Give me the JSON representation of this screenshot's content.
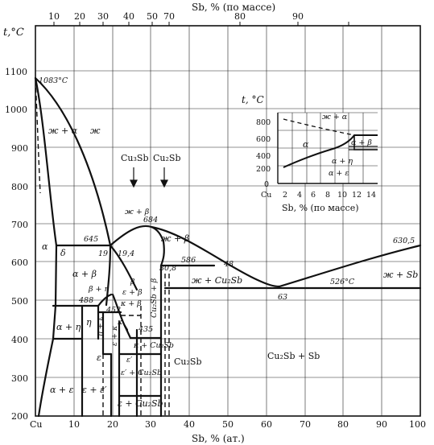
{
  "axes": {
    "y_title": "t,°C",
    "y_ticks": [
      "1100",
      "1000",
      "900",
      "800",
      "700",
      "600",
      "500",
      "400",
      "300",
      "200"
    ],
    "x_bottom_title": "Sb, % (ат.)",
    "x_bottom_origin": "Cu",
    "x_bottom_ticks": [
      "10",
      "20",
      "30",
      "40",
      "50",
      "60",
      "70",
      "80",
      "90",
      "100"
    ],
    "x_top_title": "Sb, % (по массе)",
    "x_top_ticks": [
      "10",
      "20",
      "30",
      "40",
      "50",
      "70",
      "80",
      "90"
    ]
  },
  "points": {
    "cu_melt": "1083°C",
    "sb_melt": "630,5",
    "t645": "645",
    "t684": "684",
    "t586": "586",
    "t526": "526°C",
    "t488": "488",
    "t452": "452",
    "t435": "435",
    "c19": "19",
    "c19_4": "19,4",
    "c30_8": "30,8",
    "c48": "48",
    "c63": "63"
  },
  "regions": {
    "liq_alpha": "ж + α",
    "liq": "ж",
    "liq_beta_top": "ж + β",
    "liq_beta": "ж + β",
    "liq_cu2sb": "ж + Cu₂Sb",
    "liq_sb": "ж + Sb",
    "alpha": "α",
    "delta": "δ",
    "alpha_beta": "α + β",
    "beta": "β",
    "eps_beta": "ε + β",
    "kappa_beta": "κ + β",
    "beta_eta": "β + η",
    "eta": "η",
    "alpha_eta": "α + η",
    "eta_eps": "η + ε",
    "eps_kappa": "ε + κ",
    "kappa": "κ",
    "kappa_cu2sb": "κ + Cu₂Sb",
    "eps_prime": "ε′",
    "eps": "ε",
    "eps_prime_cu2sb": "ε′ + Cu₂Sb",
    "alpha_eps": "α + ε",
    "eps_epsprime": "ε + ε′",
    "eps_cu2sb": "ε + Cu₂Sb",
    "cu2sb_sb": "Cu₂Sb + Sb",
    "cu2sb_label": "Cu₂Sb",
    "cu2sb_beta": "Cu₂Sb + β",
    "kappa_small": "κ"
  },
  "arrows": {
    "left": "Cu₃Sb",
    "right": "Cu₂Sb"
  },
  "inset": {
    "y_title": "t, °C",
    "y_ticks": [
      "800",
      "600",
      "400",
      "200",
      "0"
    ],
    "x_origin": "Cu",
    "x_ticks": [
      "2",
      "4",
      "6",
      "8",
      "10",
      "12",
      "14"
    ],
    "x_title": "Sb, % (по массе)",
    "regions": {
      "liq_alpha": "ж + α",
      "alpha": "α",
      "alpha_beta": "α + β",
      "alpha_eta": "α + η",
      "alpha_eps": "α + ε"
    }
  }
}
